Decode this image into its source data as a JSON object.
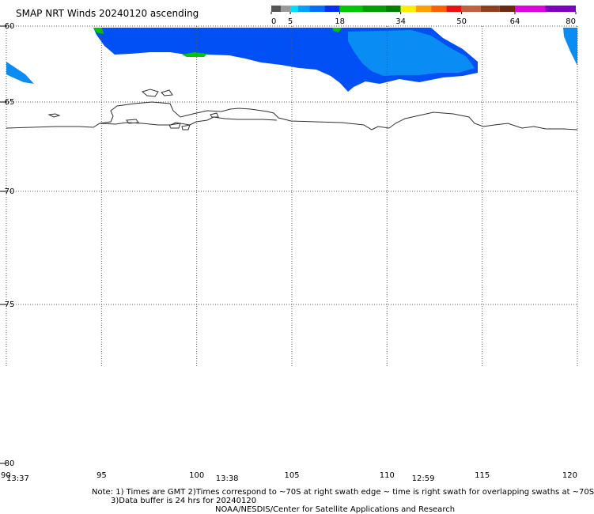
{
  "title": "SMAP NRT Winds 20240120 ascending",
  "colorbar": {
    "ticks": [
      "0",
      "5",
      "18",
      "34",
      "50",
      "64",
      "80"
    ],
    "tick_values": [
      0,
      5,
      18,
      34,
      50,
      64,
      80
    ],
    "bins": [
      {
        "from": 0,
        "to": 2.5,
        "color": "#555555"
      },
      {
        "from": 2.5,
        "to": 5,
        "color": "#9a9a9a"
      },
      {
        "from": 5,
        "to": 7,
        "color": "#00dcff"
      },
      {
        "from": 7,
        "to": 10,
        "color": "#00a0ff"
      },
      {
        "from": 10,
        "to": 14,
        "color": "#0070ff"
      },
      {
        "from": 14,
        "to": 18,
        "color": "#0030f0"
      },
      {
        "from": 18,
        "to": 24,
        "color": "#00c800"
      },
      {
        "from": 24,
        "to": 30,
        "color": "#00a000"
      },
      {
        "from": 30,
        "to": 34,
        "color": "#008000"
      },
      {
        "from": 34,
        "to": 38,
        "color": "#ffee00"
      },
      {
        "from": 38,
        "to": 42,
        "color": "#ffa000"
      },
      {
        "from": 42,
        "to": 46,
        "color": "#ff6000"
      },
      {
        "from": 46,
        "to": 50,
        "color": "#ee1010"
      },
      {
        "from": 50,
        "to": 55,
        "color": "#c06040"
      },
      {
        "from": 55,
        "to": 60,
        "color": "#904020"
      },
      {
        "from": 60,
        "to": 64,
        "color": "#6a2a10"
      },
      {
        "from": 64,
        "to": 72,
        "color": "#e000e0"
      },
      {
        "from": 72,
        "to": 80,
        "color": "#8000c0"
      }
    ]
  },
  "axes": {
    "lat_labels": [
      "-60",
      "-65",
      "-70",
      "-75",
      "-80"
    ],
    "lon_labels": [
      "90",
      "95",
      "100",
      "105",
      "110",
      "115",
      "120"
    ],
    "lat_values": [
      -60,
      -65,
      -70,
      -75,
      -80
    ],
    "lon_values": [
      90,
      95,
      100,
      105,
      110,
      115,
      120
    ],
    "lon_range": [
      90,
      120
    ],
    "lat_range": [
      -60,
      -80
    ]
  },
  "swath_times": [
    {
      "label": "13:37",
      "lon": 90.1
    },
    {
      "label": "13:38",
      "lon": 101.1
    },
    {
      "label": "12:59",
      "lon": 111.4
    }
  ],
  "notes": [
    "Note: 1) Times are GMT 2)Times correspond to ~70S at right swath edge ~ time is right swath for overlapping swaths at ~70S",
    "3)Data buffer is 24 hrs for 20240120",
    "NOAA/NESDIS/Center for Satellite Applications and Research"
  ],
  "colors": {
    "wind_blue": "#0050f5",
    "wind_light_blue": "#0a8cf5",
    "wind_green": "#00c800",
    "coastline": "#303030",
    "grid": "#555555"
  }
}
